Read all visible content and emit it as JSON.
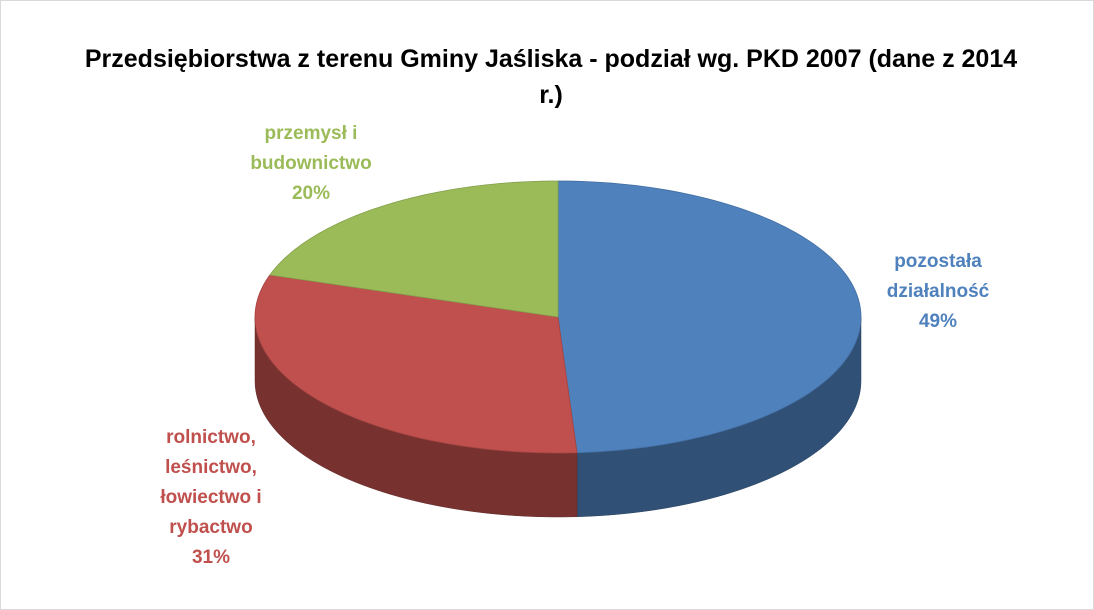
{
  "chart_data": {
    "type": "pie",
    "title": "Przedsiębiorstwa z terenu Gminy Jaśliska - podział wg. PKD 2007 (dane z 2014 r.)",
    "categories": [
      "pozostała działalność",
      "rolnictwo, leśnictwo, łowiectwo i rybactwo",
      "przemysł i budownictwo"
    ],
    "values": [
      49,
      31,
      20
    ],
    "value_labels": [
      "49%",
      "31%",
      "20%"
    ],
    "colors": [
      "#4f81bd",
      "#c0504d",
      "#9bbb59"
    ]
  }
}
